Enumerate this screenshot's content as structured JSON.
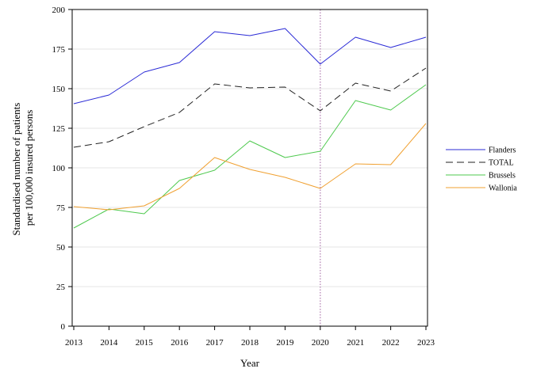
{
  "chart_data": {
    "type": "line",
    "title": "",
    "xlabel": "Year",
    "ylabel_lines": [
      "Standardised number of patients",
      "per 100,000 insured persons"
    ],
    "x": [
      2013,
      2014,
      2015,
      2016,
      2017,
      2018,
      2019,
      2020,
      2021,
      2022,
      2023
    ],
    "xlim": [
      2013,
      2023
    ],
    "ylim": [
      0,
      200
    ],
    "yticks": [
      0,
      25,
      50,
      75,
      100,
      125,
      150,
      175,
      200
    ],
    "grid": "horizontal",
    "legend_position": "right",
    "reference_line": {
      "x": 2020,
      "color": "#b07ab0",
      "style": "dotted"
    },
    "series": [
      {
        "name": "Flanders",
        "color": "#2b2bd6",
        "dash": "solid",
        "values": [
          140.5,
          146,
          160.5,
          166.5,
          186,
          183.5,
          188,
          165.5,
          182.5,
          176,
          182.5
        ]
      },
      {
        "name": "TOTAL",
        "color": "#222222",
        "dash": "dashed",
        "values": [
          113,
          116.5,
          126,
          135,
          153,
          150.5,
          151,
          136,
          153.5,
          148.5,
          163
        ]
      },
      {
        "name": "Brussels",
        "color": "#4ec94e",
        "dash": "solid",
        "values": [
          62,
          74,
          71,
          92,
          98.5,
          117,
          106.5,
          110.5,
          142.5,
          136.5,
          152.5
        ]
      },
      {
        "name": "Wallonia",
        "color": "#f0a030",
        "dash": "solid",
        "values": [
          75.5,
          73.5,
          76,
          87,
          106.5,
          99,
          94,
          87,
          102.5,
          102,
          128
        ]
      }
    ]
  }
}
